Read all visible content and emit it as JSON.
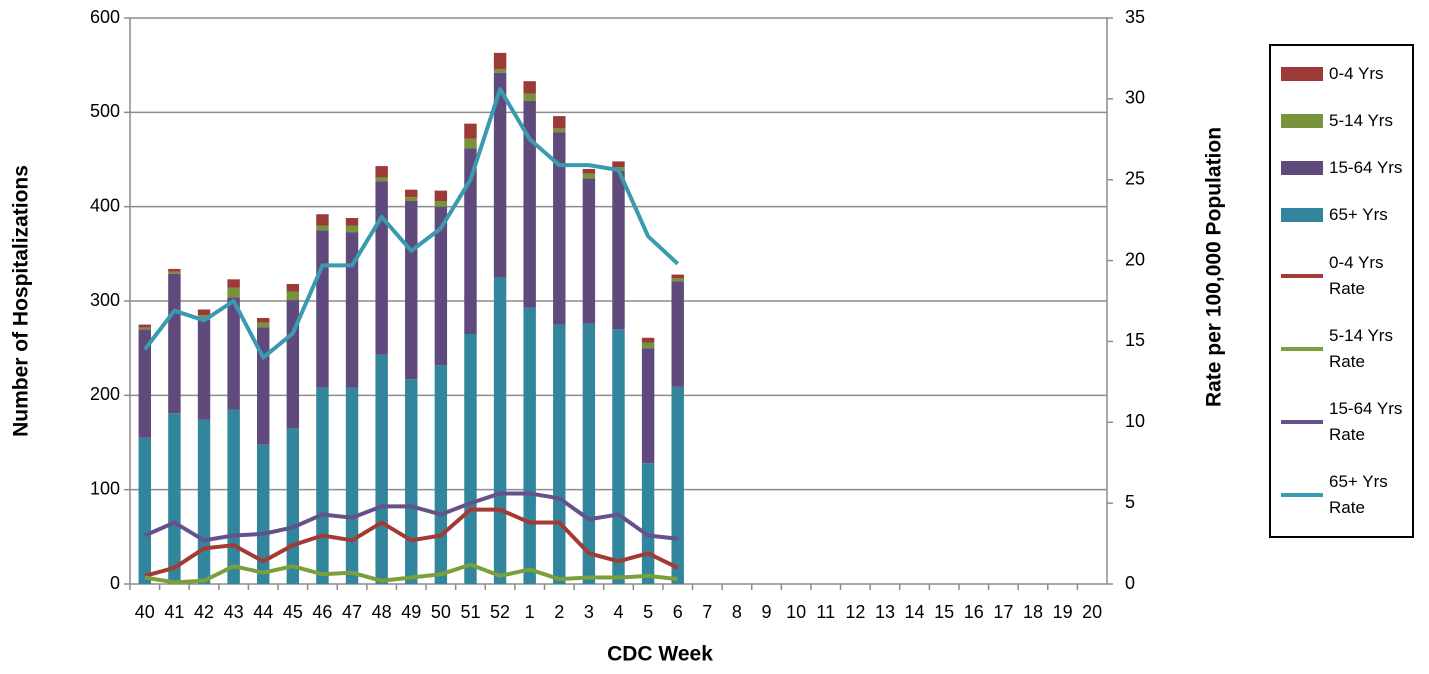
{
  "chart_data": {
    "type": "bar",
    "stacked": true,
    "x_label": "CDC Week",
    "y_label": "Number of Hospitalizations",
    "y2_label": "Rate per 100,000 Population",
    "categories": [
      "40",
      "41",
      "42",
      "43",
      "44",
      "45",
      "46",
      "47",
      "48",
      "49",
      "50",
      "51",
      "52",
      "1",
      "2",
      "3",
      "4",
      "5",
      "6",
      "7",
      "8",
      "9",
      "10",
      "11",
      "12",
      "13",
      "14",
      "15",
      "16",
      "17",
      "18",
      "19",
      "20"
    ],
    "ylim": [
      0,
      600
    ],
    "yticks": [
      0,
      100,
      200,
      300,
      400,
      500,
      600
    ],
    "y2lim": [
      0,
      35
    ],
    "y2ticks": [
      0,
      5,
      10,
      15,
      20,
      25,
      30,
      35
    ],
    "grid": true,
    "legend": "right",
    "series": [
      {
        "name": "0-4 Yrs",
        "type": "bar",
        "color": "#9b3a36",
        "values": [
          3,
          3,
          6,
          9,
          5,
          8,
          12,
          8,
          12,
          8,
          11,
          16,
          17,
          13,
          13,
          5,
          6,
          5,
          4,
          null,
          null,
          null,
          null,
          null,
          null,
          null,
          null,
          null,
          null,
          null,
          null,
          null,
          null
        ]
      },
      {
        "name": "5-14 Yrs",
        "type": "bar",
        "color": "#77933c",
        "values": [
          2,
          2,
          5,
          10,
          5,
          9,
          5,
          7,
          4,
          4,
          6,
          10,
          4,
          8,
          4,
          5,
          4,
          6,
          3,
          null,
          null,
          null,
          null,
          null,
          null,
          null,
          null,
          null,
          null,
          null,
          null,
          null,
          null
        ]
      },
      {
        "name": "15-64 Yrs",
        "type": "bar",
        "color": "#604a7b",
        "values": [
          115,
          148,
          106,
          119,
          124,
          136,
          167,
          165,
          184,
          189,
          168,
          197,
          217,
          219,
          204,
          154,
          168,
          122,
          112,
          null,
          null,
          null,
          null,
          null,
          null,
          null,
          null,
          null,
          null,
          null,
          null,
          null,
          null
        ]
      },
      {
        "name": "65+ Yrs",
        "type": "bar",
        "color": "#31859c",
        "values": [
          155,
          181,
          174,
          185,
          148,
          165,
          208,
          208,
          243,
          217,
          232,
          265,
          325,
          293,
          275,
          276,
          270,
          128,
          209,
          null,
          null,
          null,
          null,
          null,
          null,
          null,
          null,
          null,
          null,
          null,
          null,
          null,
          null
        ]
      },
      {
        "name": "0-4 Yrs Rate",
        "type": "line",
        "axis": "y2",
        "color": "#a33a34",
        "values": [
          0.5,
          1.0,
          2.2,
          2.4,
          1.4,
          2.4,
          3.0,
          2.7,
          3.8,
          2.7,
          3.0,
          4.6,
          4.6,
          3.8,
          3.8,
          1.9,
          1.4,
          1.9,
          1.0,
          null,
          null,
          null,
          null,
          null,
          null,
          null,
          null,
          null,
          null,
          null,
          null,
          null,
          null
        ]
      },
      {
        "name": "5-14 Yrs Rate",
        "type": "line",
        "axis": "y2",
        "color": "#7aa03c",
        "values": [
          0.4,
          0.1,
          0.2,
          1.1,
          0.7,
          1.1,
          0.6,
          0.7,
          0.2,
          0.4,
          0.6,
          1.2,
          0.5,
          0.9,
          0.3,
          0.4,
          0.4,
          0.5,
          0.3,
          null,
          null,
          null,
          null,
          null,
          null,
          null,
          null,
          null,
          null,
          null,
          null,
          null,
          null
        ]
      },
      {
        "name": "15-64 Yrs Rate",
        "type": "line",
        "axis": "y2",
        "color": "#66518a",
        "values": [
          3.0,
          3.8,
          2.7,
          3.0,
          3.1,
          3.5,
          4.3,
          4.1,
          4.8,
          4.8,
          4.3,
          5.0,
          5.6,
          5.6,
          5.3,
          4.0,
          4.3,
          3.0,
          2.8,
          null,
          null,
          null,
          null,
          null,
          null,
          null,
          null,
          null,
          null,
          null,
          null,
          null,
          null
        ]
      },
      {
        "name": "65+ Yrs Rate",
        "type": "line",
        "axis": "y2",
        "color": "#3a9ab0",
        "values": [
          14.5,
          16.9,
          16.3,
          17.5,
          14.0,
          15.5,
          19.7,
          19.7,
          22.7,
          20.6,
          22.0,
          25.0,
          30.6,
          27.5,
          25.9,
          25.9,
          25.6,
          21.5,
          19.8,
          null,
          null,
          null,
          null,
          null,
          null,
          null,
          null,
          null,
          null,
          null,
          null,
          null,
          null
        ]
      }
    ]
  }
}
